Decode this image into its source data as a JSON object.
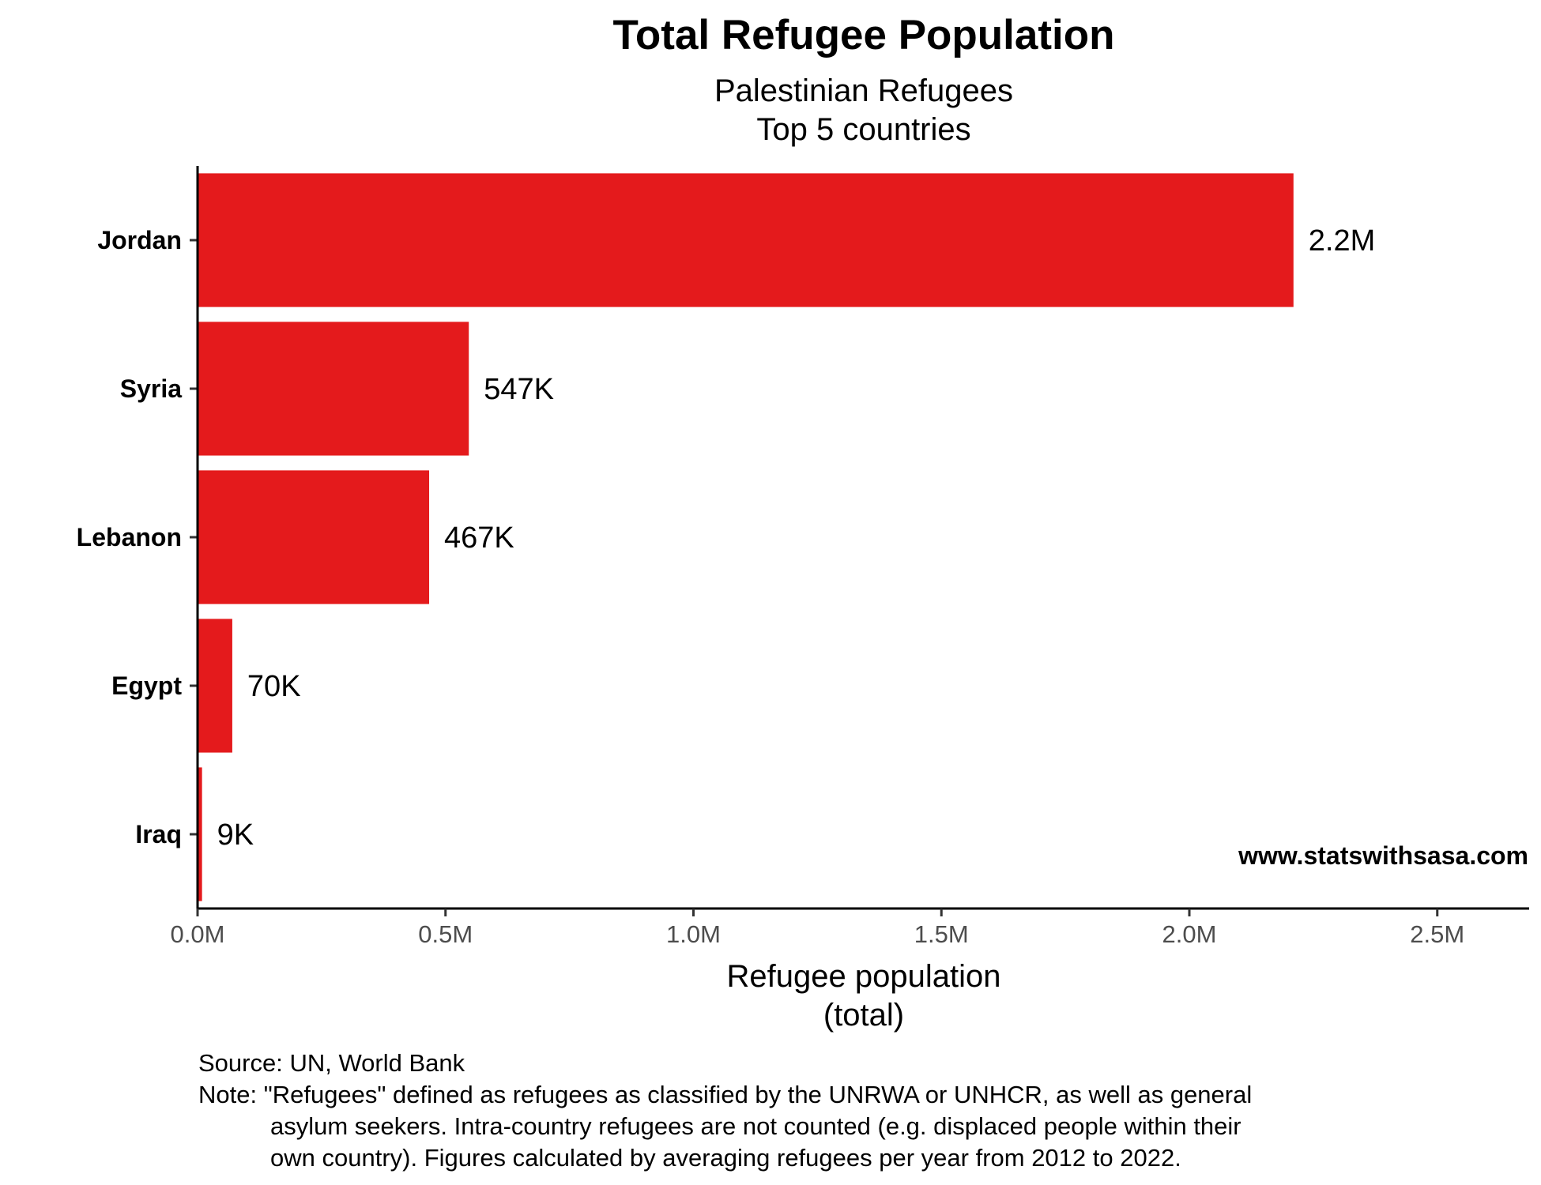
{
  "chart_data": {
    "type": "bar",
    "orientation": "horizontal",
    "title": "Total Refugee Population",
    "subtitle": [
      "Palestinian Refugees",
      "Top 5 countries"
    ],
    "categories": [
      "Jordan",
      "Syria",
      "Lebanon",
      "Egypt",
      "Iraq"
    ],
    "values": [
      2210000,
      547000,
      467000,
      70000,
      9000
    ],
    "data_labels": [
      "2.2M",
      "547K",
      "467K",
      "70K",
      "9K"
    ],
    "xlabel": [
      "Refugee population",
      "(total)"
    ],
    "ylabel": "",
    "xlim": [
      0,
      2700000
    ],
    "x_ticks": [
      0,
      500000,
      1000000,
      1500000,
      2000000,
      2500000
    ],
    "x_tick_labels": [
      "0.0M",
      "0.5M",
      "1.0M",
      "1.5M",
      "2.0M",
      "2.5M"
    ],
    "bar_color": "#e41a1c",
    "grid": false,
    "legend": "none"
  },
  "watermark": "www.statswithsasa.com",
  "caption": {
    "source": "Source: UN, World Bank",
    "note_lines": [
      "Note: \"Refugees\" defined as refugees as classified by the UNRWA or UNHCR, as well as general",
      "asylum seekers. Intra-country refugees are not counted (e.g. displaced people within their",
      "own country). Figures calculated by averaging refugees per year from 2012 to 2022."
    ]
  }
}
